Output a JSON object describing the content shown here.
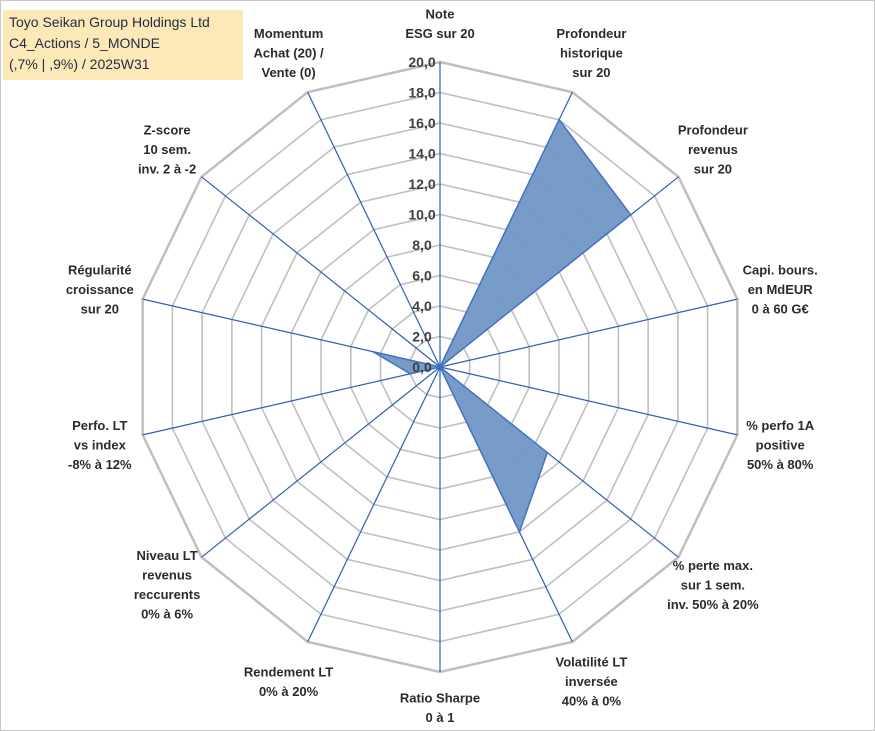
{
  "title": {
    "line1": "Toyo Seikan Group Holdings Ltd",
    "line2": "C4_Actions / 5_MONDE",
    "line3": "(,7% | ,9%) / 2025W31"
  },
  "colors": {
    "fill": "#7097c4",
    "stroke": "#4472c4",
    "grid": "#bfbfbf",
    "spoke": "#2f5fb3",
    "title_bg": "#fde9b8"
  },
  "chart_data": {
    "type": "radar",
    "rlim": [
      0,
      20
    ],
    "r_ticks": [
      "0,0",
      "2,0",
      "4,0",
      "6,0",
      "8,0",
      "10,0",
      "12,0",
      "14,0",
      "16,0",
      "18,0",
      "20,0"
    ],
    "categories": [
      [
        "Note",
        "ESG sur 20"
      ],
      [
        "Profondeur",
        "historique",
        "sur 20"
      ],
      [
        "Profondeur",
        "revenus",
        "sur 20"
      ],
      [
        "Capi. bours.",
        "en MdEUR",
        "0 à 60 G€"
      ],
      [
        "% perfo 1A",
        "positive",
        "50% à 80%"
      ],
      [
        "% perte max.",
        "sur 1 sem.",
        "inv. 50% à 20%"
      ],
      [
        "Volatilité LT",
        "inversée",
        "40% à 0%"
      ],
      [
        "Ratio Sharpe",
        "0 à 1"
      ],
      [
        "Rendement LT",
        "0% à 20%"
      ],
      [
        "Niveau LT",
        "revenus",
        "reccurents",
        "0% à 6%"
      ],
      [
        "Perfo. LT",
        "vs index",
        "-8% à 12%"
      ],
      [
        "Régularité",
        "croissance",
        "sur 20"
      ],
      [
        "Z-score",
        "10 sem.",
        "inv. 2 à -2"
      ],
      [
        "Momentum",
        "Achat (20) /",
        "Vente (0)"
      ]
    ],
    "values": [
      0,
      18,
      16,
      0,
      0,
      9,
      12,
      0,
      0,
      0,
      2,
      4.5,
      0,
      0
    ],
    "grid": true,
    "legend": "none"
  }
}
